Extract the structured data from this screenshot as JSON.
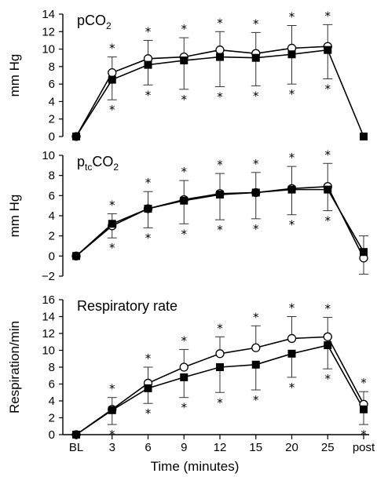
{
  "chart_data": {
    "type": "line",
    "x_categories": [
      "BL",
      "3",
      "6",
      "9",
      "12",
      "15",
      "20",
      "25",
      "post"
    ],
    "xlabel": "Time (minutes)",
    "panels": [
      {
        "title_parts": [
          {
            "t": "pCO",
            "s": "n"
          },
          {
            "t": "2",
            "s": "sub"
          }
        ],
        "ylabel": "mm Hg",
        "ylim": [
          0,
          14
        ],
        "yticks": [
          0,
          2,
          4,
          6,
          8,
          10,
          12,
          14
        ],
        "series": [
          {
            "marker": "open-circle",
            "values": [
              0,
              7.3,
              8.9,
              9.1,
              9.9,
              9.5,
              10.1,
              10.3,
              null
            ],
            "err_up": [
              0,
              1.8,
              2.1,
              2.2,
              2.1,
              2.4,
              2.6,
              2.5,
              0
            ]
          },
          {
            "marker": "filled-square",
            "values": [
              0,
              6.5,
              8.2,
              8.7,
              9.1,
              9.0,
              9.4,
              9.9,
              0
            ],
            "err_down": [
              0,
              2.3,
              2.3,
              3.3,
              3.4,
              3.2,
              3.4,
              3.3,
              0
            ]
          }
        ],
        "stars_above": [
          "",
          "*",
          "*",
          "*",
          "*",
          "*",
          "*",
          "*",
          ""
        ],
        "stars_below": [
          "",
          "*",
          "*",
          "*",
          "*",
          "*",
          "*",
          "*",
          ""
        ]
      },
      {
        "title_parts": [
          {
            "t": "p",
            "s": "n"
          },
          {
            "t": "tc",
            "s": "sub"
          },
          {
            "t": "CO",
            "s": "n"
          },
          {
            "t": "2",
            "s": "sub"
          }
        ],
        "ylabel": "mm Hg",
        "ylim": [
          -2,
          10
        ],
        "yticks": [
          -2,
          0,
          2,
          4,
          6,
          8,
          10
        ],
        "series": [
          {
            "marker": "open-circle",
            "values": [
              0,
              3.0,
              4.7,
              5.6,
              6.2,
              6.3,
              6.7,
              6.9,
              -0.2
            ],
            "err_up": [
              0,
              1.2,
              1.7,
              1.9,
              2.0,
              2.0,
              2.2,
              2.3,
              2.2
            ],
            "err_down": [
              0,
              1.2,
              1.9,
              2.4,
              2.6,
              2.6,
              2.6,
              2.4,
              1.6
            ]
          },
          {
            "marker": "filled-square",
            "values": [
              0,
              3.2,
              4.7,
              5.5,
              6.1,
              6.3,
              6.6,
              6.6,
              0.4
            ],
            "err_down": [
              0,
              0,
              0,
              0,
              0,
              0,
              0,
              0,
              0
            ]
          }
        ],
        "stars_above": [
          "",
          "*",
          "*",
          "*",
          "*",
          "*",
          "*",
          "*",
          ""
        ],
        "stars_below": [
          "",
          "*",
          "*",
          "*",
          "*",
          "*",
          "*",
          "*",
          ""
        ]
      },
      {
        "title_parts": [
          {
            "t": "Respiratory rate",
            "s": "n"
          }
        ],
        "ylabel": "Respiration/min",
        "ylim": [
          0,
          16
        ],
        "yticks": [
          0,
          2,
          4,
          6,
          8,
          10,
          12,
          14,
          16
        ],
        "series": [
          {
            "marker": "open-circle",
            "values": [
              0,
              3.0,
              6.1,
              8.0,
              9.6,
              10.3,
              11.4,
              11.6,
              3.6
            ],
            "err_up": [
              0,
              1.4,
              1.9,
              2.1,
              2.0,
              2.6,
              2.6,
              2.3,
              1.5
            ]
          },
          {
            "marker": "filled-square",
            "values": [
              0,
              2.9,
              5.5,
              6.8,
              8.0,
              8.3,
              9.6,
              10.6,
              3.0
            ],
            "err_down": [
              0,
              1.7,
              1.8,
              2.4,
              3.0,
              3.0,
              2.8,
              2.8,
              1.8
            ]
          }
        ],
        "stars_above": [
          "",
          "*",
          "*",
          "*",
          "*",
          "*",
          "*",
          "*",
          "*"
        ],
        "stars_below": [
          "",
          "*",
          "*",
          "*",
          "*",
          "*",
          "*",
          "*",
          "*"
        ]
      }
    ]
  }
}
